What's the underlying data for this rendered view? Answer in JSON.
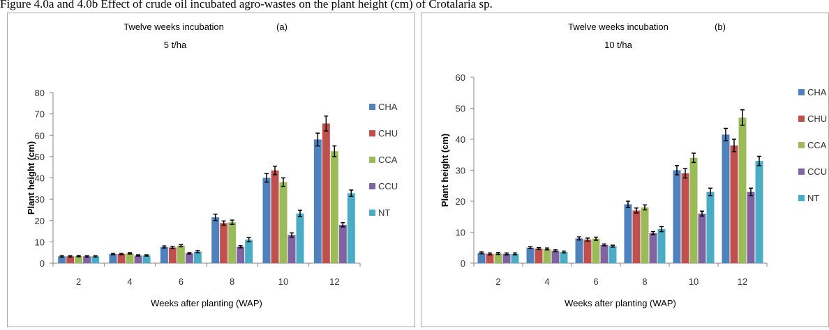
{
  "caption": "Figure 4.0a and 4.0b Effect of crude oil incubated agro-wastes on the plant height (cm) of Crotalaria sp.",
  "legend": [
    "CHA",
    "CHU",
    "CCA",
    "CCU",
    "NT"
  ],
  "colors": {
    "CHA": "#4f81bd",
    "CHU": "#c0504d",
    "CCA": "#9bbb59",
    "CCU": "#8064a2",
    "NT": "#4bacc6"
  },
  "chart_data": [
    {
      "type": "bar",
      "title": "Twelve weeks incubation",
      "panel_label": "(a)",
      "subtitle": "5 t/ha",
      "xlabel": "Weeks after planting (WAP)",
      "ylabel": "Plant height (cm)",
      "ylim": [
        0,
        80
      ],
      "yticks": [
        "0",
        "10",
        "20",
        "30",
        "40",
        "50",
        "60",
        "70",
        "80"
      ],
      "categories": [
        "2",
        "4",
        "6",
        "8",
        "10",
        "12"
      ],
      "legend_position": "right",
      "grid": false,
      "series": [
        {
          "name": "CHA",
          "values": [
            3.2,
            4.3,
            7.6,
            21.5,
            40.0,
            58.0
          ],
          "errors": [
            0.3,
            0.3,
            0.5,
            1.5,
            2.0,
            3.0
          ]
        },
        {
          "name": "CHU",
          "values": [
            3.2,
            4.3,
            7.4,
            18.8,
            43.5,
            65.5
          ],
          "errors": [
            0.3,
            0.3,
            0.5,
            1.0,
            2.0,
            3.5
          ]
        },
        {
          "name": "CCA",
          "values": [
            3.3,
            4.6,
            8.2,
            19.2,
            38.0,
            52.5
          ],
          "errors": [
            0.3,
            0.3,
            0.5,
            1.0,
            2.0,
            2.5
          ]
        },
        {
          "name": "CCU",
          "values": [
            3.2,
            3.6,
            4.6,
            7.7,
            13.2,
            18.0
          ],
          "errors": [
            0.3,
            0.3,
            0.3,
            0.5,
            1.0,
            1.0
          ]
        },
        {
          "name": "NT",
          "values": [
            3.2,
            3.6,
            5.4,
            11.0,
            23.3,
            32.8
          ],
          "errors": [
            0.3,
            0.3,
            0.5,
            1.0,
            1.5,
            1.5
          ]
        }
      ]
    },
    {
      "type": "bar",
      "title": "Twelve weeks incubation",
      "panel_label": "(b)",
      "subtitle": "10 t/ha",
      "xlabel": "Weeks after planting (WAP)",
      "ylabel": "Plant height (cm)",
      "ylim": [
        0,
        60
      ],
      "yticks": [
        "0",
        "10",
        "20",
        "30",
        "40",
        "50",
        "60"
      ],
      "categories": [
        "2",
        "4",
        "6",
        "8",
        "10",
        "12"
      ],
      "legend_position": "right",
      "grid": false,
      "series": [
        {
          "name": "CHA",
          "values": [
            3.3,
            5.0,
            8.0,
            19.0,
            30.0,
            41.5
          ],
          "errors": [
            0.3,
            0.3,
            0.5,
            1.0,
            1.5,
            2.0
          ]
        },
        {
          "name": "CHU",
          "values": [
            3.0,
            4.7,
            7.6,
            17.0,
            29.0,
            38.0
          ],
          "errors": [
            0.3,
            0.3,
            0.5,
            0.8,
            1.5,
            2.0
          ]
        },
        {
          "name": "CCA",
          "values": [
            3.1,
            4.6,
            7.9,
            18.0,
            34.0,
            47.0
          ],
          "errors": [
            0.3,
            0.3,
            0.5,
            0.8,
            1.5,
            2.5
          ]
        },
        {
          "name": "CCU",
          "values": [
            3.0,
            4.0,
            5.9,
            9.7,
            16.0,
            23.0
          ],
          "errors": [
            0.3,
            0.3,
            0.3,
            0.5,
            0.8,
            1.2
          ]
        },
        {
          "name": "NT",
          "values": [
            3.0,
            3.6,
            5.5,
            11.0,
            23.0,
            33.0
          ],
          "errors": [
            0.3,
            0.3,
            0.3,
            0.8,
            1.2,
            1.5
          ]
        }
      ]
    }
  ]
}
